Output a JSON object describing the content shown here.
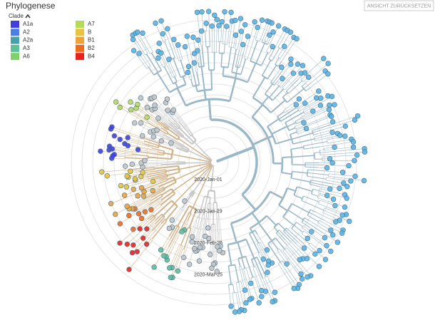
{
  "header": {
    "title": "Phylogenese",
    "reset_button": "ANSICHT ZURÜCKSETZEN"
  },
  "legend": {
    "title": "Clade",
    "items": [
      {
        "label": "A1a",
        "color": "#3f3fe0"
      },
      {
        "label": "A2",
        "color": "#4a7fe6"
      },
      {
        "label": "A2a",
        "color": "#4aa0a8"
      },
      {
        "label": "A3",
        "color": "#5cc09a"
      },
      {
        "label": "A6",
        "color": "#7fd16a"
      },
      {
        "label": "A7",
        "color": "#b6d95a"
      },
      {
        "label": "B",
        "color": "#e8c43a"
      },
      {
        "label": "B1",
        "color": "#eda23a"
      },
      {
        "label": "B2",
        "color": "#ee6b1e"
      },
      {
        "label": "B4",
        "color": "#e8221e"
      }
    ]
  },
  "tree": {
    "time_labels": [
      "2020-Jan-01",
      "2020-Jan-29",
      "2020-Feb-26",
      "2020-Mar-25"
    ]
  }
}
